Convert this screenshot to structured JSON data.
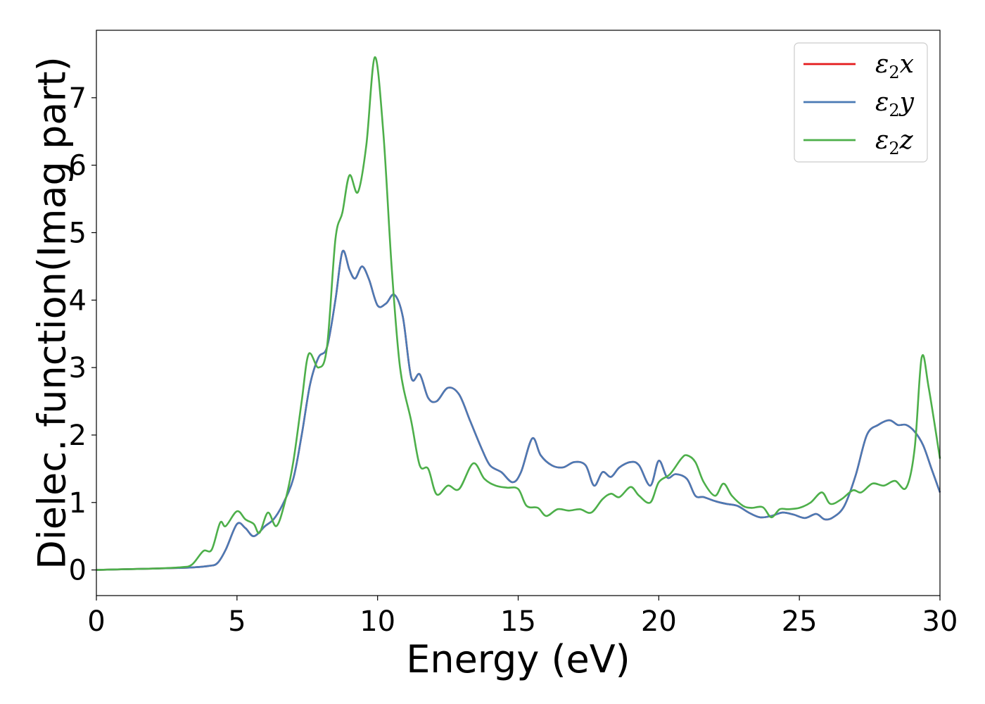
{
  "chart_data": {
    "type": "line",
    "title": "",
    "xlabel": "Energy (eV)",
    "ylabel": "Dielec. function(Imag part)",
    "xlim": [
      0,
      30
    ],
    "ylim": [
      -0.38,
      8.0
    ],
    "xticks": [
      0,
      5,
      10,
      15,
      20,
      25,
      30
    ],
    "yticks": [
      0,
      1,
      2,
      3,
      4,
      5,
      6,
      7
    ],
    "grid": false,
    "legend_position": "top-right",
    "series": [
      {
        "name": "ε2x",
        "legend_base": "ε",
        "legend_sub": "2",
        "legend_var": "x",
        "color": "#e41a1c",
        "x": [
          0,
          1,
          2,
          3,
          3.5,
          4,
          4.3,
          4.6,
          5.0,
          5.3,
          5.6,
          6.0,
          6.3,
          6.6,
          7.0,
          7.3,
          7.6,
          7.9,
          8.2,
          8.5,
          8.75,
          9.0,
          9.2,
          9.45,
          9.7,
          10.0,
          10.3,
          10.6,
          10.9,
          11.2,
          11.5,
          11.8,
          12.1,
          12.5,
          12.9,
          13.3,
          13.7,
          14.0,
          14.4,
          14.8,
          15.1,
          15.5,
          15.8,
          16.2,
          16.6,
          17.0,
          17.4,
          17.7,
          18.0,
          18.3,
          18.6,
          19.0,
          19.3,
          19.7,
          20.0,
          20.3,
          20.6,
          21.0,
          21.3,
          21.6,
          22.0,
          22.4,
          22.8,
          23.2,
          23.6,
          24.0,
          24.4,
          24.8,
          25.2,
          25.6,
          25.9,
          26.2,
          26.6,
          27.0,
          27.4,
          27.8,
          28.2,
          28.5,
          28.8,
          29.1,
          29.4,
          29.7,
          30.0
        ],
        "values": [
          0.0,
          0.01,
          0.02,
          0.03,
          0.04,
          0.06,
          0.1,
          0.3,
          0.68,
          0.62,
          0.5,
          0.65,
          0.75,
          0.95,
          1.35,
          2.0,
          2.75,
          3.15,
          3.3,
          4.0,
          4.72,
          4.45,
          4.32,
          4.5,
          4.3,
          3.92,
          3.95,
          4.08,
          3.75,
          2.85,
          2.9,
          2.55,
          2.5,
          2.7,
          2.6,
          2.2,
          1.8,
          1.55,
          1.45,
          1.3,
          1.45,
          1.95,
          1.7,
          1.55,
          1.52,
          1.6,
          1.55,
          1.25,
          1.45,
          1.38,
          1.52,
          1.6,
          1.55,
          1.25,
          1.62,
          1.37,
          1.42,
          1.35,
          1.1,
          1.08,
          1.02,
          0.98,
          0.95,
          0.85,
          0.78,
          0.8,
          0.85,
          0.82,
          0.77,
          0.83,
          0.75,
          0.78,
          0.95,
          1.4,
          2.0,
          2.15,
          2.22,
          2.15,
          2.15,
          2.05,
          1.85,
          1.5,
          1.15
        ]
      },
      {
        "name": "ε2y",
        "legend_base": "ε",
        "legend_sub": "2",
        "legend_var": "y",
        "color": "#4a7ab5",
        "x": [
          0,
          1,
          2,
          3,
          3.5,
          4,
          4.3,
          4.6,
          5.0,
          5.3,
          5.6,
          6.0,
          6.3,
          6.6,
          7.0,
          7.3,
          7.6,
          7.9,
          8.2,
          8.5,
          8.75,
          9.0,
          9.2,
          9.45,
          9.7,
          10.0,
          10.3,
          10.6,
          10.9,
          11.2,
          11.5,
          11.8,
          12.1,
          12.5,
          12.9,
          13.3,
          13.7,
          14.0,
          14.4,
          14.8,
          15.1,
          15.5,
          15.8,
          16.2,
          16.6,
          17.0,
          17.4,
          17.7,
          18.0,
          18.3,
          18.6,
          19.0,
          19.3,
          19.7,
          20.0,
          20.3,
          20.6,
          21.0,
          21.3,
          21.6,
          22.0,
          22.4,
          22.8,
          23.2,
          23.6,
          24.0,
          24.4,
          24.8,
          25.2,
          25.6,
          25.9,
          26.2,
          26.6,
          27.0,
          27.4,
          27.8,
          28.2,
          28.5,
          28.8,
          29.1,
          29.4,
          29.7,
          30.0
        ],
        "values": [
          0.0,
          0.01,
          0.02,
          0.03,
          0.04,
          0.06,
          0.1,
          0.3,
          0.68,
          0.62,
          0.5,
          0.65,
          0.75,
          0.95,
          1.35,
          2.0,
          2.75,
          3.15,
          3.3,
          4.0,
          4.72,
          4.45,
          4.32,
          4.5,
          4.3,
          3.92,
          3.95,
          4.08,
          3.75,
          2.85,
          2.9,
          2.55,
          2.5,
          2.7,
          2.6,
          2.2,
          1.8,
          1.55,
          1.45,
          1.3,
          1.45,
          1.95,
          1.7,
          1.55,
          1.52,
          1.6,
          1.55,
          1.25,
          1.45,
          1.38,
          1.52,
          1.6,
          1.55,
          1.25,
          1.62,
          1.37,
          1.42,
          1.35,
          1.1,
          1.08,
          1.02,
          0.98,
          0.95,
          0.85,
          0.78,
          0.8,
          0.85,
          0.82,
          0.77,
          0.83,
          0.75,
          0.78,
          0.95,
          1.4,
          2.0,
          2.15,
          2.22,
          2.15,
          2.15,
          2.05,
          1.85,
          1.5,
          1.15
        ]
      },
      {
        "name": "ε2z",
        "legend_base": "ε",
        "legend_sub": "2",
        "legend_var": "z",
        "color": "#4daf4a",
        "x": [
          0,
          1,
          2,
          3,
          3.4,
          3.8,
          4.1,
          4.4,
          4.6,
          5.0,
          5.3,
          5.6,
          5.8,
          6.1,
          6.4,
          6.7,
          7.0,
          7.3,
          7.55,
          7.9,
          8.2,
          8.5,
          8.75,
          9.0,
          9.3,
          9.6,
          9.9,
          10.2,
          10.5,
          10.8,
          11.2,
          11.5,
          11.8,
          12.1,
          12.5,
          12.9,
          13.4,
          13.8,
          14.2,
          14.6,
          15.0,
          15.3,
          15.7,
          16.0,
          16.4,
          16.8,
          17.2,
          17.6,
          18.0,
          18.3,
          18.6,
          19.0,
          19.3,
          19.7,
          20.0,
          20.4,
          20.8,
          21.0,
          21.3,
          21.6,
          22.0,
          22.3,
          22.6,
          23.0,
          23.3,
          23.7,
          24.0,
          24.3,
          24.6,
          25.0,
          25.4,
          25.8,
          26.1,
          26.5,
          26.9,
          27.2,
          27.6,
          28.0,
          28.4,
          28.8,
          29.1,
          29.35,
          29.6,
          30.0
        ],
        "values": [
          0.0,
          0.01,
          0.02,
          0.04,
          0.08,
          0.28,
          0.3,
          0.7,
          0.65,
          0.87,
          0.75,
          0.68,
          0.55,
          0.85,
          0.65,
          1.0,
          1.6,
          2.5,
          3.2,
          3.0,
          3.3,
          4.9,
          5.3,
          5.85,
          5.6,
          6.3,
          7.6,
          6.5,
          4.5,
          3.0,
          2.2,
          1.55,
          1.5,
          1.12,
          1.25,
          1.2,
          1.58,
          1.35,
          1.25,
          1.22,
          1.2,
          0.95,
          0.92,
          0.8,
          0.9,
          0.88,
          0.9,
          0.85,
          1.05,
          1.13,
          1.08,
          1.23,
          1.1,
          1.0,
          1.3,
          1.42,
          1.65,
          1.7,
          1.6,
          1.3,
          1.1,
          1.28,
          1.1,
          0.95,
          0.92,
          0.93,
          0.78,
          0.9,
          0.9,
          0.92,
          1.0,
          1.15,
          0.98,
          1.05,
          1.18,
          1.15,
          1.28,
          1.25,
          1.32,
          1.22,
          1.8,
          3.15,
          2.7,
          1.65
        ]
      }
    ]
  }
}
